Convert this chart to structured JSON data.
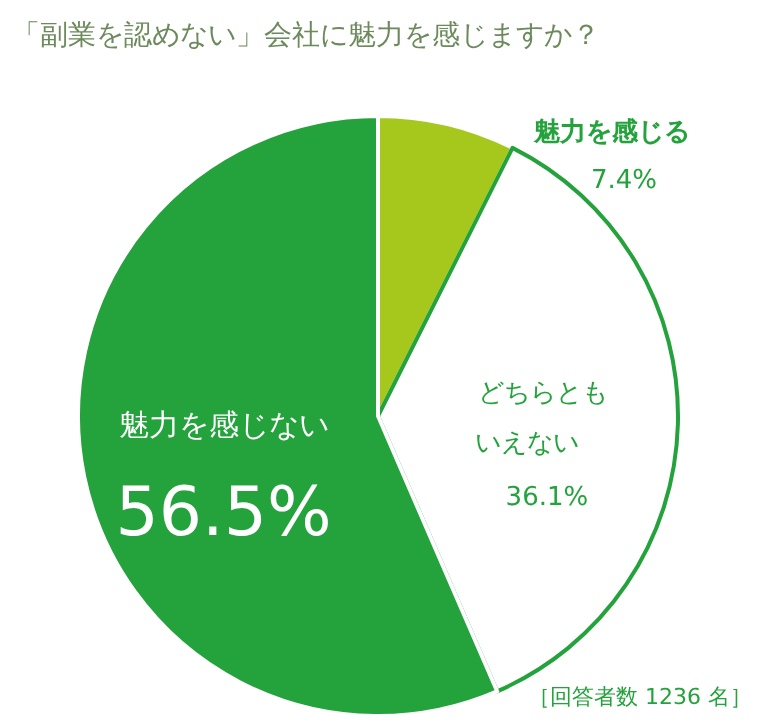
{
  "chart_data": {
    "type": "pie",
    "title": "「副業を認めない」会社に魅力を感じますか？",
    "categories": [
      "魅力を感じる",
      "どちらともいえない",
      "魅力を感じない"
    ],
    "values": [
      7.4,
      36.1,
      56.5
    ],
    "colors": [
      "#a6c81c",
      "#ffffff",
      "#24a23c"
    ],
    "value_labels": [
      "7.4%",
      "36.1%",
      "56.5%"
    ],
    "annotations": [
      "［回答者数 1236 名］"
    ]
  }
}
